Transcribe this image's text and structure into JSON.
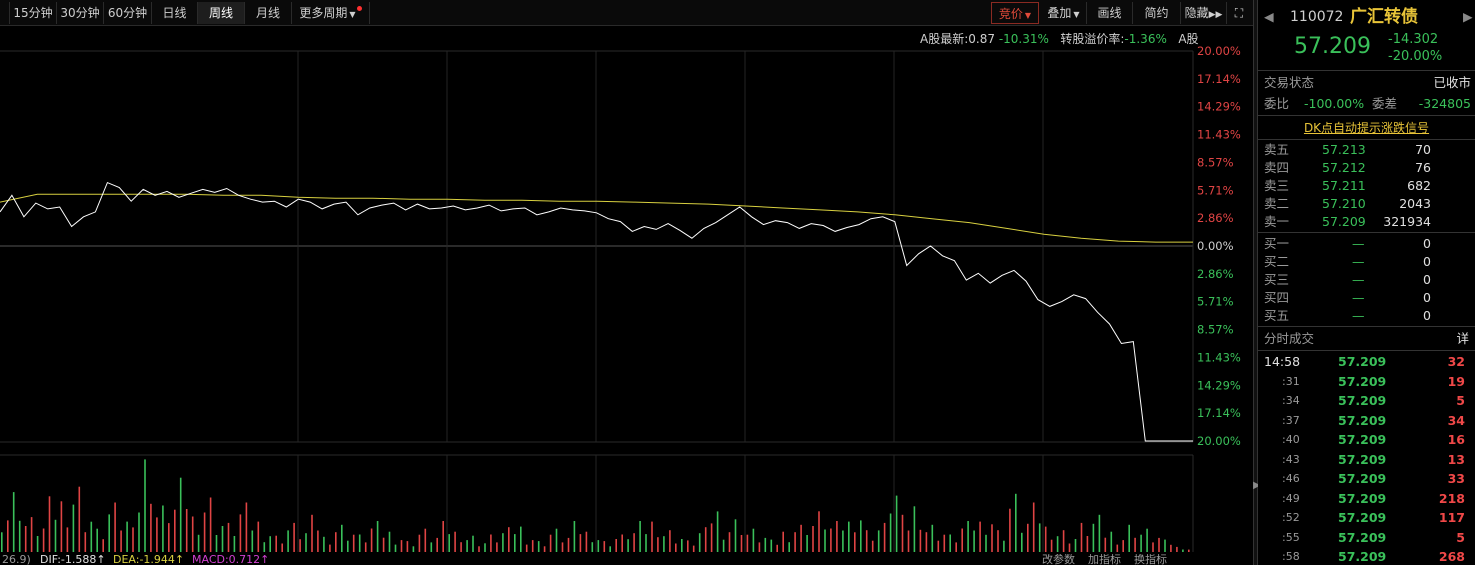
{
  "toolbar": {
    "periods": [
      "15分钟",
      "30分钟",
      "60分钟",
      "日线",
      "周线",
      "月线",
      "更多周期"
    ],
    "active": "周线",
    "right_buttons": [
      "竞价",
      "叠加",
      "画线",
      "简约",
      "隐藏"
    ]
  },
  "info": {
    "a_share_label": "A股最新:",
    "a_share_price": "0.87",
    "a_share_change": "-10.31%",
    "premium_label": "转股溢价率:",
    "premium_value": "-1.36%",
    "suffix": "A股"
  },
  "axis": {
    "upper": [
      "20.00%",
      "17.14%",
      "14.29%",
      "11.43%",
      "8.57%",
      "5.71%",
      "2.86%"
    ],
    "zero": "0.00%",
    "lower": [
      "2.86%",
      "5.71%",
      "8.57%",
      "11.43%",
      "14.29%",
      "17.14%",
      "20.00%"
    ]
  },
  "colors": {
    "up": "#e04444",
    "down": "#3ac05a",
    "price_line": "#ffffff",
    "avg_line": "#d8d040"
  },
  "indicators": {
    "left_value": "26.9)",
    "dif": "DIF:-1.588↑",
    "dea": "DEA:-1.944↑",
    "macd": "MACD:0.712↑",
    "links": [
      "改参数",
      "加指标",
      "换指标"
    ]
  },
  "quote": {
    "code": "110072",
    "name": "广汇转债",
    "price": "57.209",
    "change": "-14.302",
    "change_pct": "-20.00%",
    "status_label": "交易状态",
    "status_value": "已收市",
    "ratio_label": "委比",
    "ratio_value": "-100.00%",
    "diff_label": "委差",
    "diff_value": "-324805",
    "signal_link": "DK点自动提示涨跌信号"
  },
  "asks": [
    {
      "label": "卖五",
      "price": "57.213",
      "vol": "70"
    },
    {
      "label": "卖四",
      "price": "57.212",
      "vol": "76"
    },
    {
      "label": "卖三",
      "price": "57.211",
      "vol": "682"
    },
    {
      "label": "卖二",
      "price": "57.210",
      "vol": "2043"
    },
    {
      "label": "卖一",
      "price": "57.209",
      "vol": "321934"
    }
  ],
  "bids": [
    {
      "label": "买一",
      "price": "—",
      "vol": "0"
    },
    {
      "label": "买二",
      "price": "—",
      "vol": "0"
    },
    {
      "label": "买三",
      "price": "—",
      "vol": "0"
    },
    {
      "label": "买四",
      "price": "—",
      "vol": "0"
    },
    {
      "label": "买五",
      "price": "—",
      "vol": "0"
    }
  ],
  "trades_title": "分时成交",
  "trades_detail": "详",
  "trades": [
    {
      "time": "14:58",
      "price": "57.209",
      "vol": "32"
    },
    {
      "time": ":31",
      "price": "57.209",
      "vol": "19"
    },
    {
      "time": ":34",
      "price": "57.209",
      "vol": "5"
    },
    {
      "time": ":37",
      "price": "57.209",
      "vol": "34"
    },
    {
      "time": ":40",
      "price": "57.209",
      "vol": "16"
    },
    {
      "time": ":43",
      "price": "57.209",
      "vol": "13"
    },
    {
      "time": ":46",
      "price": "57.209",
      "vol": "33"
    },
    {
      "time": ":49",
      "price": "57.209",
      "vol": "218"
    },
    {
      "time": ":52",
      "price": "57.209",
      "vol": "117"
    },
    {
      "time": ":55",
      "price": "57.209",
      "vol": "5"
    },
    {
      "time": ":58",
      "price": "57.209",
      "vol": "268"
    }
  ],
  "chart_data": {
    "type": "line",
    "y_unit": "%",
    "ylim": [
      -20,
      20
    ],
    "price_series": [
      3.5,
      5.2,
      3.0,
      4.4,
      3.8,
      4.0,
      2.0,
      3.0,
      3.5,
      6.5,
      6.0,
      4.6,
      5.8,
      5.2,
      5.6,
      5.0,
      5.4,
      5.8,
      5.5,
      5.9,
      5.2,
      4.8,
      4.5,
      4.6,
      4.0,
      4.8,
      4.5,
      3.8,
      4.3,
      4.5,
      3.2,
      3.9,
      4.2,
      4.4,
      3.7,
      4.3,
      3.8,
      3.9,
      4.1,
      3.7,
      3.9,
      4.2,
      3.6,
      3.8,
      3.9,
      3.2,
      3.5,
      3.9,
      3.7,
      3.6,
      3.4,
      2.8,
      2.5,
      1.5,
      2.0,
      1.7,
      2.3,
      1.6,
      0.8,
      1.8,
      2.4,
      3.2,
      4.0,
      3.0,
      2.2,
      2.6,
      2.4,
      1.8,
      2.3,
      2.1,
      1.5,
      1.9,
      2.2,
      2.8,
      3.0,
      2.5,
      -2.0,
      -0.8,
      0.0,
      -1.0,
      -1.5,
      -3.5,
      -2.8,
      -3.8,
      -3.0,
      -2.5,
      -3.6,
      -5.5,
      -6.2,
      -5.7,
      -5.0,
      -5.4,
      -6.8,
      -8.0,
      -10.0,
      -9.8,
      -20.0,
      -20.0,
      -20.0,
      -20.0,
      -20.0
    ],
    "avg_series": [
      4.5,
      5.3,
      5.3,
      5.3,
      5.3,
      5.3,
      5.2,
      5.2,
      5.0,
      4.9,
      4.9,
      4.8,
      4.8,
      4.7,
      4.7,
      4.6,
      4.6,
      4.5,
      4.4,
      4.3,
      4.1,
      3.9,
      3.7,
      3.5,
      3.2,
      2.8,
      2.4,
      1.8,
      1.2,
      0.8,
      0.5,
      0.4,
      0.4
    ],
    "volume_bars": [
      40,
      55,
      30,
      25,
      45,
      50,
      60,
      35,
      20,
      40,
      30,
      50,
      85,
      40,
      45,
      60,
      35,
      50,
      30,
      25,
      40,
      30,
      20,
      15,
      25,
      20,
      30,
      15,
      25,
      20,
      15,
      25,
      20,
      15,
      10,
      20,
      15,
      25,
      20,
      15,
      10,
      15,
      20,
      25,
      15,
      10,
      20,
      15,
      25,
      20,
      15,
      10,
      15,
      20,
      25,
      30,
      20,
      15,
      10,
      20,
      40,
      25,
      30,
      20,
      15,
      10,
      20,
      25,
      30,
      35,
      25,
      30,
      40,
      20,
      25,
      60,
      30,
      45,
      25,
      20,
      15,
      25,
      30,
      35,
      20,
      50,
      30,
      40,
      25,
      20,
      15,
      25,
      30,
      20,
      15,
      25,
      20,
      15,
      10,
      5,
      3
    ]
  }
}
